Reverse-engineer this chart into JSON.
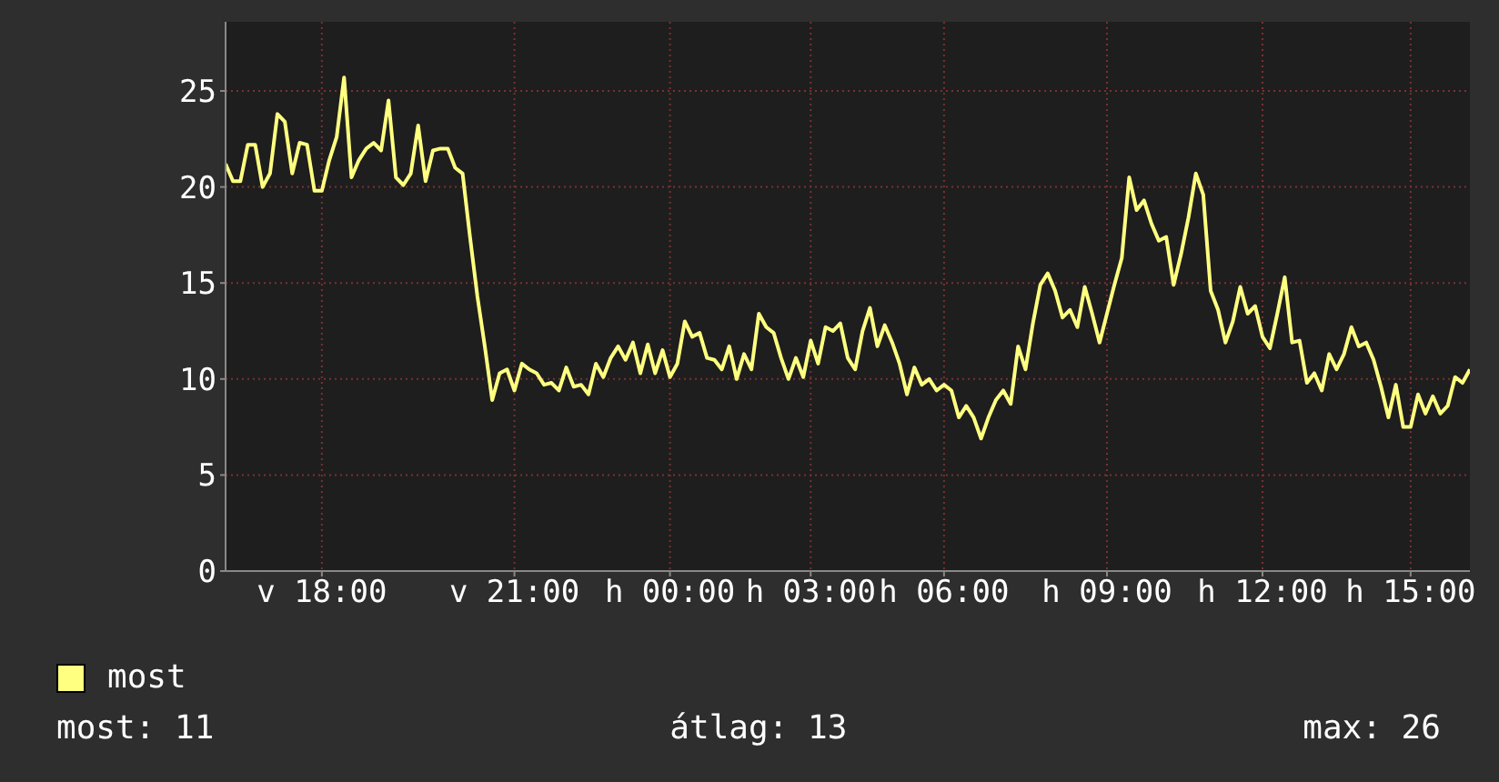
{
  "chart_data": {
    "type": "line",
    "categories": [
      null,
      null,
      null,
      null,
      null,
      null,
      null,
      null,
      null,
      null,
      null,
      null,
      null,
      "v 18:00",
      null,
      null,
      null,
      null,
      null,
      null,
      null,
      null,
      null,
      null,
      null,
      null,
      null,
      null,
      null,
      null,
      null,
      null,
      null,
      null,
      null,
      null,
      null,
      null,
      null,
      "v 21:00",
      null,
      null,
      null,
      null,
      null,
      null,
      null,
      null,
      null,
      null,
      null,
      null,
      null,
      null,
      null,
      null,
      null,
      null,
      null,
      null,
      "h 00:00",
      null,
      null,
      null,
      null,
      null,
      null,
      null,
      null,
      null,
      null,
      null,
      null,
      null,
      null,
      null,
      null,
      null,
      null,
      "h 03:00",
      null,
      null,
      null,
      null,
      null,
      null,
      null,
      null,
      null,
      null,
      null,
      null,
      null,
      null,
      null,
      null,
      null,
      "h 06:00",
      null,
      null,
      null,
      null,
      null,
      null,
      null,
      null,
      null,
      null,
      null,
      null,
      null,
      null,
      null,
      null,
      null,
      null,
      null,
      null,
      null,
      "h 09:00",
      null,
      null,
      null,
      null,
      null,
      null,
      null,
      null,
      null,
      null,
      null,
      null,
      null,
      null,
      null,
      null,
      null,
      null,
      null,
      null,
      "h 12:00",
      null,
      null,
      null,
      null,
      null,
      null,
      null,
      null,
      null,
      null,
      null,
      null,
      null,
      null,
      null,
      null,
      null,
      null,
      null,
      "h 15:00",
      null,
      null,
      null,
      null,
      null,
      null,
      null,
      null
    ],
    "series": [
      {
        "name": "most",
        "color": "#ffff80",
        "values": [
          21.2,
          20.3,
          20.3,
          22.2,
          22.2,
          20.0,
          20.7,
          23.8,
          23.4,
          20.7,
          22.3,
          22.2,
          19.8,
          19.8,
          21.4,
          22.6,
          25.7,
          20.5,
          21.4,
          22.0,
          22.3,
          21.9,
          24.5,
          20.5,
          20.1,
          20.7,
          23.2,
          20.3,
          21.9,
          22.0,
          22.0,
          21.0,
          20.7,
          17.4,
          14.3,
          11.7,
          8.9,
          10.3,
          10.5,
          9.4,
          10.8,
          10.5,
          10.3,
          9.7,
          9.8,
          9.4,
          10.6,
          9.6,
          9.7,
          9.2,
          10.8,
          10.1,
          11.1,
          11.7,
          11.0,
          11.9,
          10.3,
          11.8,
          10.3,
          11.5,
          10.1,
          10.8,
          13.0,
          12.2,
          12.4,
          11.1,
          11.0,
          10.5,
          11.7,
          10.0,
          11.3,
          10.5,
          13.4,
          12.7,
          12.4,
          11.1,
          10.0,
          11.1,
          10.1,
          12.0,
          10.8,
          12.7,
          12.5,
          12.9,
          11.1,
          10.5,
          12.5,
          13.7,
          11.7,
          12.8,
          11.9,
          10.8,
          9.2,
          10.6,
          9.7,
          10.0,
          9.4,
          9.7,
          9.4,
          8.0,
          8.6,
          8.0,
          6.9,
          8.0,
          8.9,
          9.4,
          8.7,
          11.7,
          10.5,
          12.9,
          14.9,
          15.5,
          14.6,
          13.2,
          13.6,
          12.7,
          14.8,
          13.4,
          11.9,
          13.4,
          14.9,
          16.3,
          20.5,
          18.8,
          19.3,
          18.1,
          17.2,
          17.4,
          14.9,
          16.5,
          18.4,
          20.7,
          19.6,
          14.6,
          13.6,
          11.9,
          13.0,
          14.8,
          13.4,
          13.8,
          12.2,
          11.6,
          13.4,
          15.3,
          11.9,
          12.0,
          9.8,
          10.3,
          9.4,
          11.3,
          10.5,
          11.3,
          12.7,
          11.7,
          11.9,
          11.0,
          9.6,
          8.0,
          9.7,
          7.5,
          7.5,
          9.2,
          8.2,
          9.1,
          8.2,
          8.6,
          10.1,
          9.8,
          10.5
        ]
      }
    ],
    "ylim": [
      0,
      28.6
    ],
    "yticks": [
      0,
      5,
      10,
      15,
      20,
      25
    ],
    "grid": true,
    "legend": "bottom left",
    "marker": "none",
    "line_style": "solid",
    "annotations": [
      "most: 11",
      "átlag: 13",
      "max: 26"
    ]
  }
}
